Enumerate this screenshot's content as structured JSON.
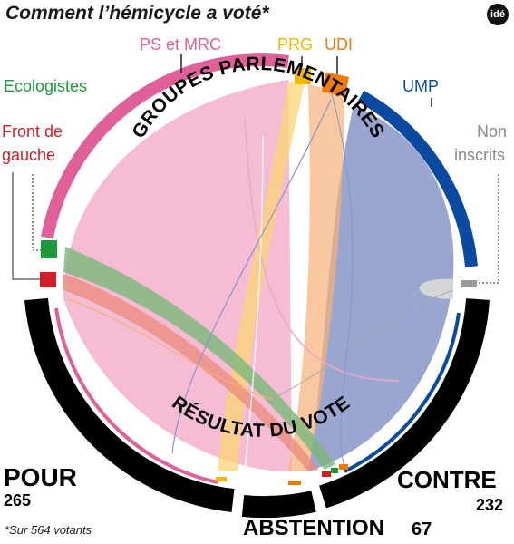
{
  "title": "Comment l’hémicycle a voté*",
  "logo": "idé",
  "footnote": "*Sur 564 votants",
  "arc_labels": {
    "top": "GROUPES PARLEMENTAIRES",
    "bottom": "RÉSULTAT DU VOTE"
  },
  "groups": [
    {
      "label": "Ecologistes",
      "color": "#1a9a3a"
    },
    {
      "label": "Front de gauche",
      "line1": "Front de",
      "line2": "gauche",
      "color": "#d0202a"
    },
    {
      "label": "PS et MRC",
      "color": "#e0609a"
    },
    {
      "label": "PRG",
      "color": "#f2b800"
    },
    {
      "label": "UDI",
      "color": "#ee7a0a"
    },
    {
      "label": "UMP",
      "color": "#0a4aa0"
    },
    {
      "label": "Non inscrits",
      "line1": "Non",
      "line2": "inscrits",
      "color": "#9a9a9a"
    }
  ],
  "results": {
    "pour": {
      "label": "POUR",
      "value": "265",
      "color": "#000000"
    },
    "contre": {
      "label": "CONTRE",
      "value": "232",
      "color": "#000000"
    },
    "abstention": {
      "label": "ABSTENTION",
      "value": "67",
      "color": "#000000"
    }
  }
}
